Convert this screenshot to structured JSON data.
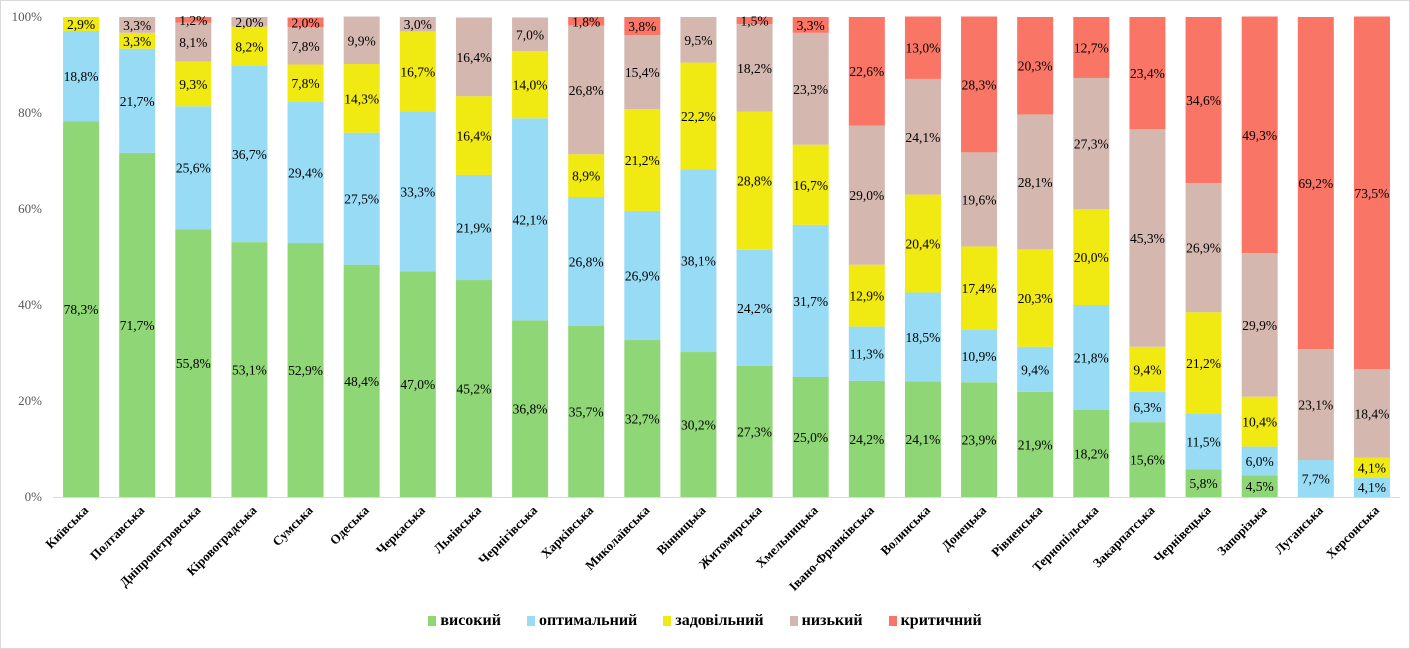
{
  "chart_data": {
    "type": "bar",
    "stacked": true,
    "percent": true,
    "title": "",
    "xlabel": "",
    "ylabel": "",
    "ylim": [
      0,
      100
    ],
    "yticks": [
      "0%",
      "20%",
      "40%",
      "60%",
      "80%",
      "100%"
    ],
    "ytick_values": [
      0,
      20,
      40,
      60,
      80,
      100
    ],
    "grid": false,
    "legend_position": "bottom",
    "categories": [
      "Київська",
      "Полтавська",
      "Дніпропетровська",
      "Кіровоградська",
      "Сумська",
      "Одеська",
      "Черкаська",
      "Львівська",
      "Чернігівська",
      "Харківська",
      "Миколаївська",
      "Вінницька",
      "Житомирська",
      "Хмельницька",
      "Івано-Франківська",
      "Волинська",
      "Донецька",
      "Рівненська",
      "Тернопільська",
      "Закарпатська",
      "Чернівецька",
      "Запорізька",
      "Луганська",
      "Херсонська"
    ],
    "series": [
      {
        "name": "високий",
        "color": "#8fd776",
        "values": [
          78.3,
          71.7,
          55.8,
          53.1,
          52.9,
          48.4,
          47.0,
          45.2,
          36.8,
          35.7,
          32.7,
          30.2,
          27.3,
          25.0,
          24.2,
          24.1,
          23.9,
          21.9,
          18.2,
          15.6,
          5.8,
          4.5,
          0,
          0
        ],
        "labels": [
          "78,3%",
          "71,7%",
          "55,8%",
          "53,1%",
          "52,9%",
          "48,4%",
          "47,0%",
          "45,2%",
          "36,8%",
          "35,7%",
          "32,7%",
          "30,2%",
          "27,3%",
          "25,0%",
          "24,2%",
          "24,1%",
          "23,9%",
          "21,9%",
          "18,2%",
          "15,6%",
          "5,8%",
          "4,5%",
          "",
          ""
        ]
      },
      {
        "name": "оптимальний",
        "color": "#97dbf5",
        "values": [
          18.8,
          21.7,
          25.6,
          36.7,
          29.4,
          27.5,
          33.3,
          21.9,
          42.1,
          26.8,
          26.9,
          38.1,
          24.2,
          31.7,
          11.3,
          18.5,
          10.9,
          9.4,
          21.8,
          6.3,
          11.5,
          6.0,
          7.7,
          4.1
        ],
        "labels": [
          "18,8%",
          "21,7%",
          "25,6%",
          "36,7%",
          "29,4%",
          "27,5%",
          "33,3%",
          "21,9%",
          "42,1%",
          "26,8%",
          "26,9%",
          "38,1%",
          "24,2%",
          "31,7%",
          "11,3%",
          "18,5%",
          "10,9%",
          "9,4%",
          "21,8%",
          "6,3%",
          "11,5%",
          "6,0%",
          "7,7%",
          "4,1%"
        ]
      },
      {
        "name": "задовільний",
        "color": "#f0e912",
        "values": [
          2.9,
          3.3,
          9.3,
          8.2,
          7.8,
          14.3,
          16.7,
          16.4,
          14.0,
          8.9,
          21.2,
          22.2,
          28.8,
          16.7,
          12.9,
          20.4,
          17.4,
          20.3,
          20.0,
          9.4,
          21.2,
          10.4,
          0,
          4.1
        ],
        "labels": [
          "2,9%",
          "3,3%",
          "9,3%",
          "8,2%",
          "7,8%",
          "14,3%",
          "16,7%",
          "16,4%",
          "14,0%",
          "8,9%",
          "21,2%",
          "22,2%",
          "28,8%",
          "16,7%",
          "12,9%",
          "20,4%",
          "17,4%",
          "20,3%",
          "20,0%",
          "9,4%",
          "21,2%",
          "10,4%",
          "",
          "4,1%"
        ]
      },
      {
        "name": "низький",
        "color": "#d4b8b0",
        "values": [
          0,
          3.3,
          8.1,
          2.0,
          7.8,
          9.9,
          3.0,
          16.4,
          7.0,
          26.8,
          15.4,
          9.5,
          18.2,
          23.3,
          29.0,
          24.1,
          19.6,
          28.1,
          27.3,
          45.3,
          26.9,
          29.9,
          23.1,
          18.4
        ],
        "labels": [
          "",
          "3,3%",
          "8,1%",
          "2,0%",
          "7,8%",
          "9,9%",
          "3,0%",
          "16,4%",
          "7,0%",
          "26,8%",
          "15,4%",
          "9,5%",
          "18,2%",
          "23,3%",
          "29,0%",
          "24,1%",
          "19,6%",
          "28,1%",
          "27,3%",
          "45,3%",
          "26,9%",
          "29,9%",
          "23,1%",
          "18,4%"
        ]
      },
      {
        "name": "критичний",
        "color": "#f97565",
        "values": [
          0,
          0,
          1.2,
          0,
          2.0,
          0,
          0,
          0,
          0,
          1.8,
          3.8,
          0,
          1.5,
          3.3,
          22.6,
          13.0,
          28.3,
          20.3,
          12.7,
          23.4,
          34.6,
          49.3,
          69.2,
          73.5
        ],
        "labels": [
          "",
          "",
          "1,2%",
          "",
          "2,0%",
          "",
          "",
          "",
          "",
          "1,8%",
          "3,8%",
          "",
          "1,5%",
          "3,3%",
          "22,6%",
          "13,0%",
          "28,3%",
          "20,3%",
          "12,7%",
          "23,4%",
          "34,6%",
          "49,3%",
          "69,2%",
          "73,5%"
        ]
      }
    ]
  },
  "legend": {
    "items": [
      {
        "label": "високий",
        "color": "#8fd776"
      },
      {
        "label": "оптимальний",
        "color": "#97dbf5"
      },
      {
        "label": "задовільний",
        "color": "#f0e912"
      },
      {
        "label": "низький",
        "color": "#d4b8b0"
      },
      {
        "label": "критичний",
        "color": "#f97565"
      }
    ]
  }
}
